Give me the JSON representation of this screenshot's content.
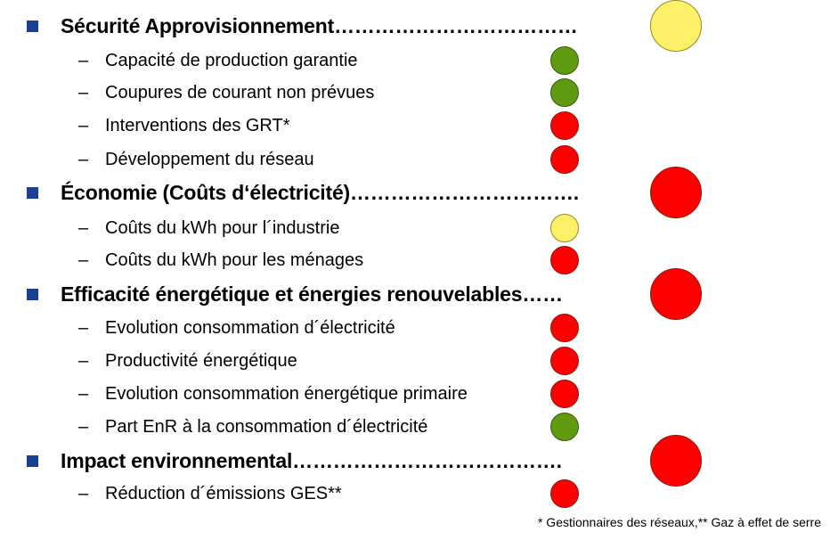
{
  "sections": [
    {
      "heading": "Sécurité Approvisionnement………………………………",
      "status": "yellow",
      "items": [
        {
          "label": "Capacité de production garantie",
          "status": "green"
        },
        {
          "label": "Coupures de courant non prévues",
          "status": "green"
        },
        {
          "label": "Interventions des GRT*",
          "status": "red"
        },
        {
          "label": "Développement du réseau",
          "status": "red"
        }
      ]
    },
    {
      "heading": "Économie (Coûts d‘électricité)…………………………….",
      "status": "red",
      "items": [
        {
          "label": "Coûts du kWh pour l´industrie",
          "status": "yellow"
        },
        {
          "label": "Coûts du kWh pour les ménages",
          "status": "red"
        }
      ]
    },
    {
      "heading": "Efficacité énergétique et énergies renouvelables……",
      "status": "red",
      "items": [
        {
          "label": "Evolution consommation d´électricité",
          "status": "red"
        },
        {
          "label": "Productivité énergétique",
          "status": "red"
        },
        {
          "label": "Evolution consommation énergétique primaire",
          "status": "red"
        },
        {
          "label": "Part EnR à la consommation d´électricité",
          "status": "green"
        }
      ]
    },
    {
      "heading": "Impact environnemental………………………………….",
      "status": "red",
      "items": [
        {
          "label": " Réduction d´émissions GES**",
          "status": "red"
        }
      ]
    }
  ],
  "dash_symbol": "–",
  "footnote": "* Gestionnaires des réseaux,** Gaz à effet de serre",
  "colors": {
    "red": "#ff0000",
    "green": "#5f9a10",
    "yellow": "#fff06a",
    "bullet": "#1c3f94"
  }
}
